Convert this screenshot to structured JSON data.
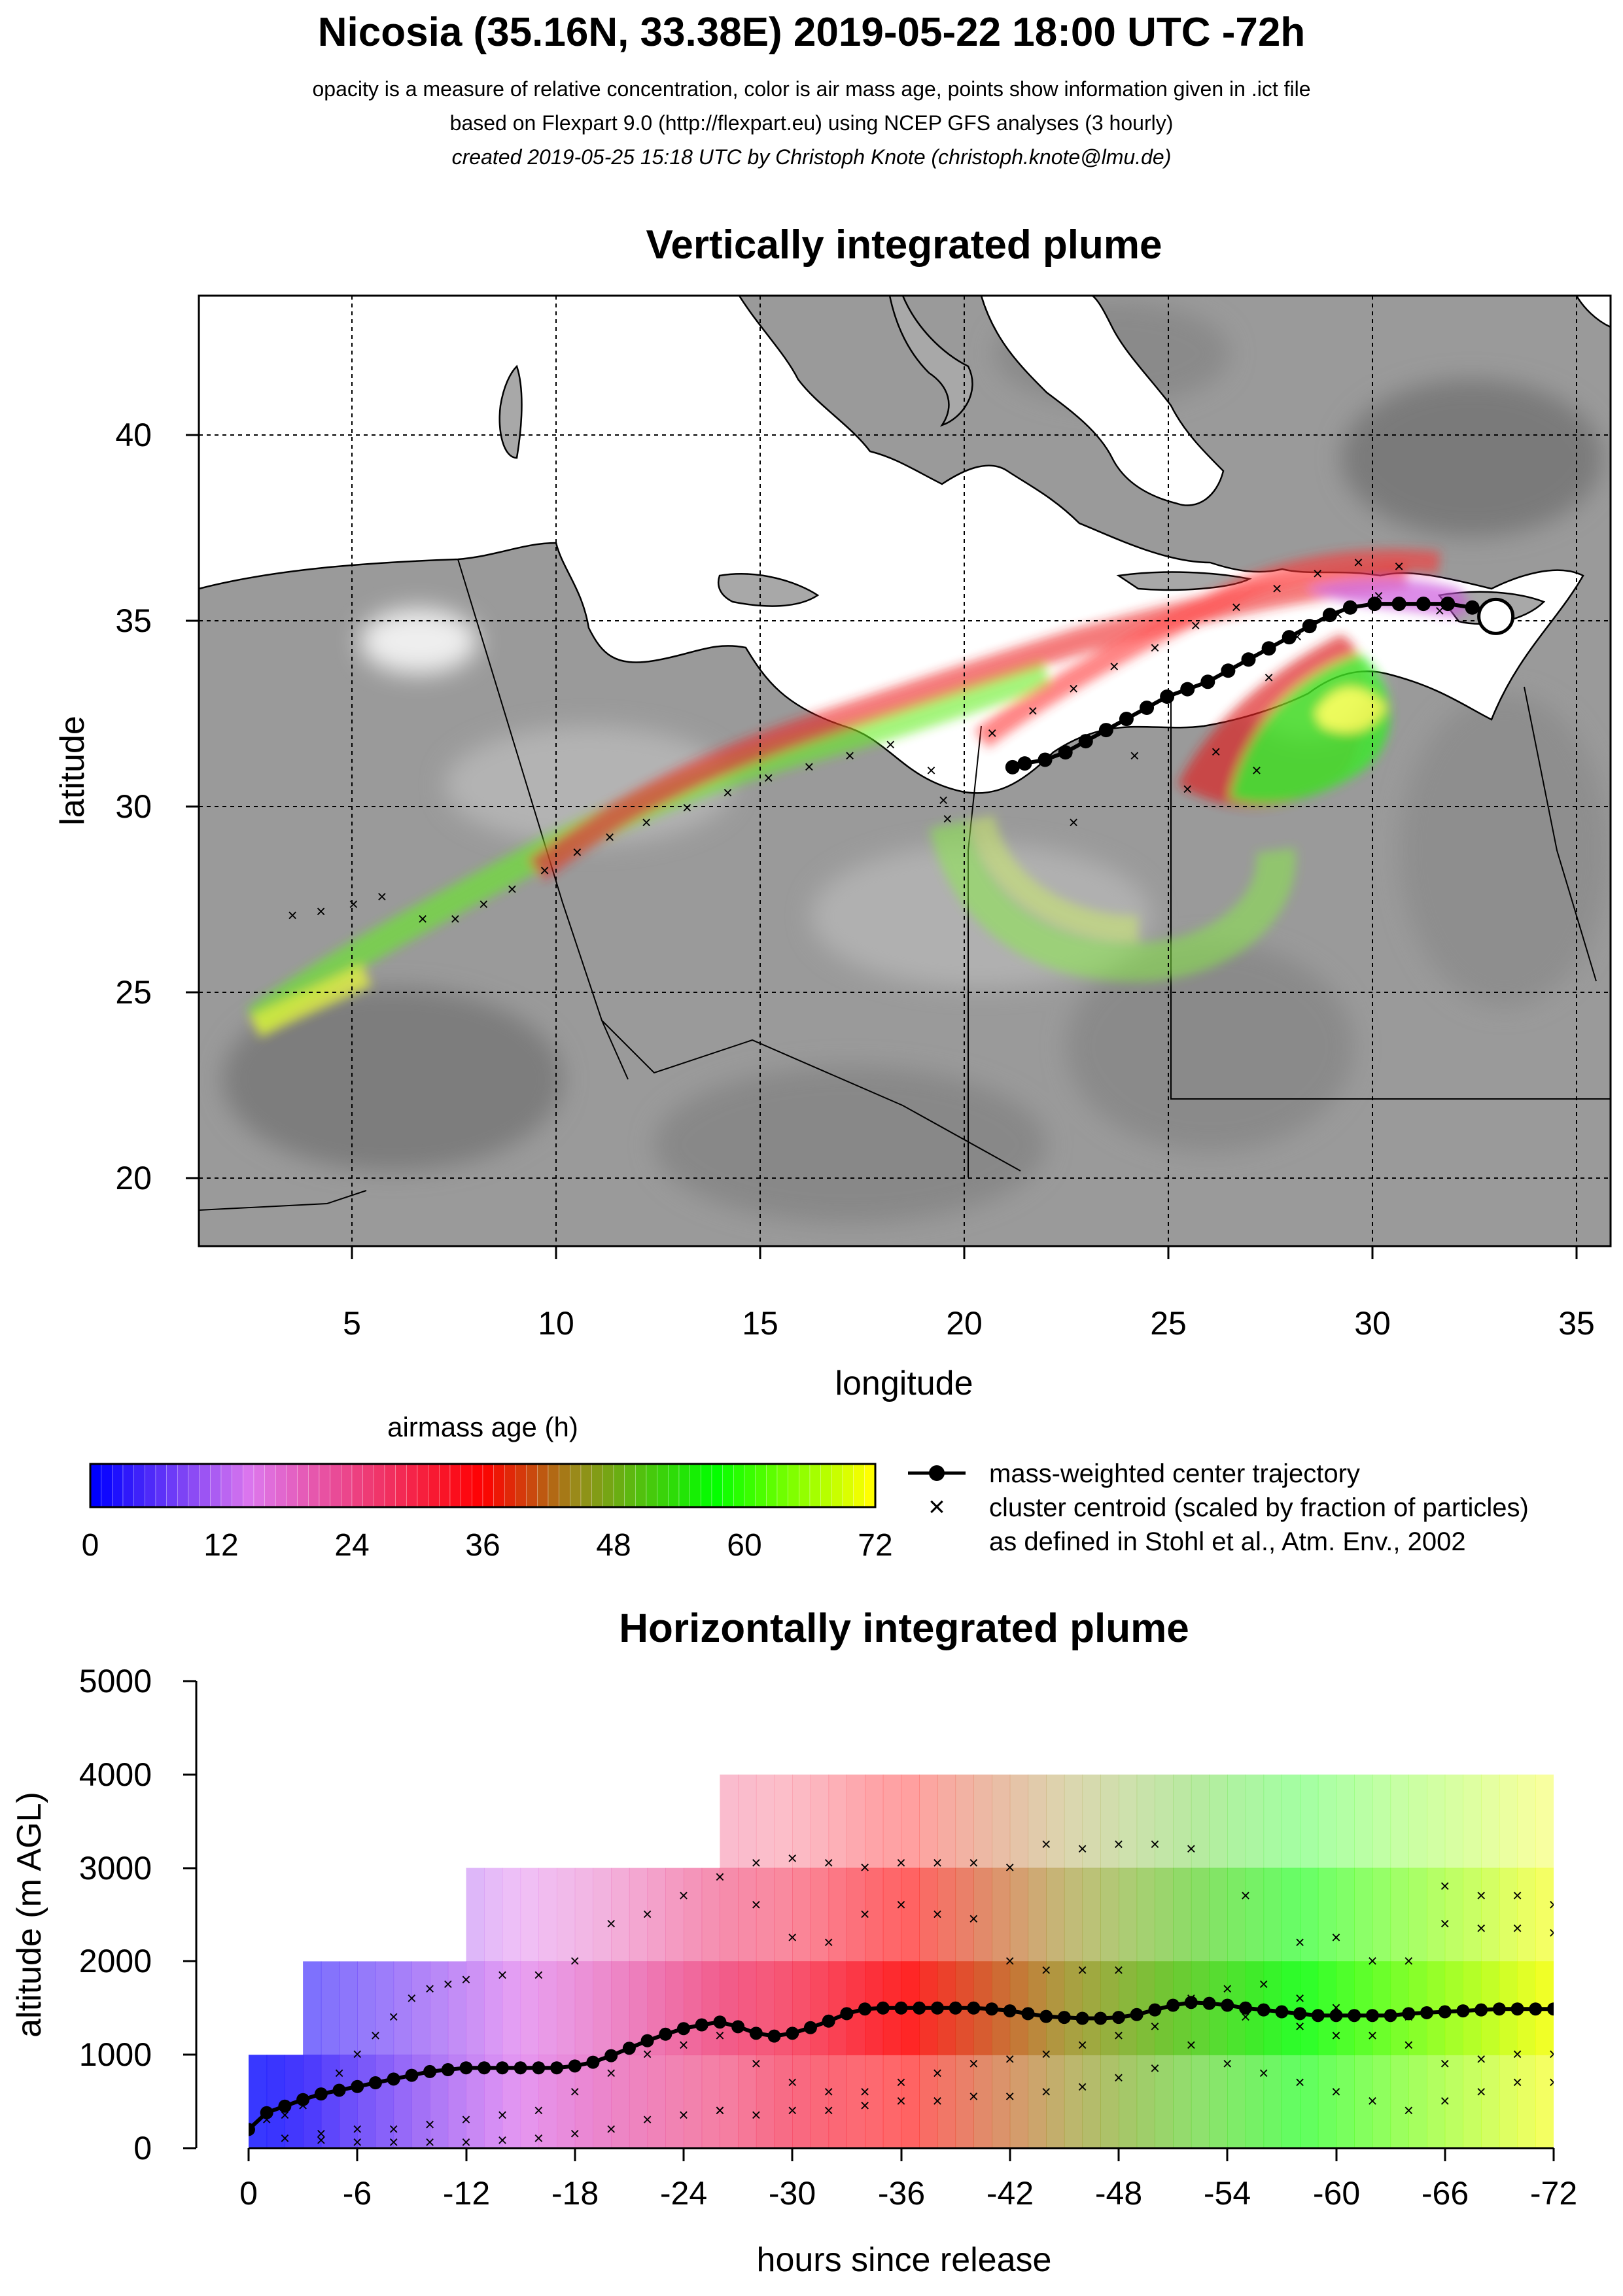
{
  "header": {
    "title": "Nicosia (35.16N, 33.38E) 2019-05-22 18:00 UTC -72h",
    "line1": "opacity is a measure of relative concentration, color is air mass age, points show information given in .ict file",
    "line2": "based on Flexpart 9.0 (http://flexpart.eu) using NCEP GFS analyses (3 hourly)",
    "line3": "created 2019-05-25 15:18 UTC by Christoph Knote (christoph.knote@lmu.de)"
  },
  "colors": {
    "age_stops": [
      "#0000ff",
      "#dd77ee",
      "#ff0000",
      "#9a8a1a",
      "#00ff00",
      "#ffff00"
    ],
    "land_gray": "#9a9a9a",
    "sea": "#ffffff"
  },
  "chart_data": [
    {
      "type": "scatter",
      "title": "Vertically integrated plume",
      "xlabel": "longitude",
      "ylabel": "latitude",
      "xlim": [
        1.5,
        36.2
      ],
      "ylim": [
        18.2,
        43.8
      ],
      "xticks": [
        5,
        10,
        15,
        20,
        25,
        30,
        35
      ],
      "yticks": [
        20,
        25,
        30,
        35,
        40
      ],
      "grid": true,
      "release_point": {
        "lon": 33.38,
        "lat": 35.16
      },
      "center_trajectory": [
        [
          33.4,
          35.3
        ],
        [
          32.8,
          35.4
        ],
        [
          32.2,
          35.5
        ],
        [
          31.6,
          35.5
        ],
        [
          31.0,
          35.5
        ],
        [
          30.4,
          35.5
        ],
        [
          29.8,
          35.4
        ],
        [
          29.3,
          35.2
        ],
        [
          28.8,
          34.9
        ],
        [
          28.3,
          34.6
        ],
        [
          27.8,
          34.3
        ],
        [
          27.3,
          34.0
        ],
        [
          26.8,
          33.7
        ],
        [
          26.3,
          33.4
        ],
        [
          25.8,
          33.2
        ],
        [
          25.3,
          33.0
        ],
        [
          24.8,
          32.7
        ],
        [
          24.3,
          32.4
        ],
        [
          23.8,
          32.1
        ],
        [
          23.3,
          31.8
        ],
        [
          22.8,
          31.5
        ],
        [
          22.3,
          31.3
        ],
        [
          21.8,
          31.2
        ],
        [
          21.5,
          31.1
        ]
      ],
      "cluster_centroids": [
        [
          3.8,
          27.1
        ],
        [
          4.5,
          27.2
        ],
        [
          5.3,
          27.4
        ],
        [
          6.0,
          27.6
        ],
        [
          7.0,
          27.0
        ],
        [
          7.8,
          27.0
        ],
        [
          8.5,
          27.4
        ],
        [
          9.2,
          27.8
        ],
        [
          10.0,
          28.3
        ],
        [
          10.8,
          28.8
        ],
        [
          11.6,
          29.2
        ],
        [
          12.5,
          29.6
        ],
        [
          13.5,
          30.0
        ],
        [
          14.5,
          30.4
        ],
        [
          15.5,
          30.8
        ],
        [
          16.5,
          31.1
        ],
        [
          17.5,
          31.4
        ],
        [
          18.5,
          31.7
        ],
        [
          19.5,
          31.0
        ],
        [
          19.8,
          30.2
        ],
        [
          19.9,
          29.7
        ],
        [
          23.0,
          29.6
        ],
        [
          21.0,
          32.0
        ],
        [
          22.0,
          32.6
        ],
        [
          23.0,
          33.2
        ],
        [
          24.0,
          33.8
        ],
        [
          25.0,
          34.3
        ],
        [
          26.0,
          34.9
        ],
        [
          27.0,
          35.4
        ],
        [
          28.0,
          35.9
        ],
        [
          29.0,
          36.3
        ],
        [
          30.0,
          36.6
        ],
        [
          31.0,
          36.5
        ],
        [
          24.5,
          31.4
        ],
        [
          25.8,
          30.5
        ],
        [
          26.5,
          31.5
        ],
        [
          27.5,
          31.0
        ],
        [
          27.8,
          33.5
        ],
        [
          28.5,
          34.6
        ],
        [
          29.5,
          35.2
        ],
        [
          30.5,
          35.7
        ],
        [
          32.0,
          35.3
        ]
      ],
      "legend": {
        "colorbar_title": "airmass age (h)",
        "colorbar_ticks": [
          "0",
          "12",
          "24",
          "36",
          "48",
          "60",
          "72"
        ],
        "center_label": "mass-weighted center trajectory",
        "cluster_label_1": "cluster centroid (scaled by fraction of particles)",
        "cluster_label_2": "as defined in Stohl et al., Atm. Env., 2002"
      }
    },
    {
      "type": "heatmap",
      "title": "Horizontally integrated plume",
      "xlabel": "hours since release",
      "ylabel": "altitude (m AGL)",
      "xlim": [
        0,
        -72
      ],
      "ylim": [
        0,
        5000
      ],
      "xticks": [
        "0",
        "-6",
        "-12",
        "-18",
        "-24",
        "-30",
        "-36",
        "-42",
        "-48",
        "-54",
        "-60",
        "-66",
        "-72"
      ],
      "yticks": [
        "0",
        "1000",
        "2000",
        "3000",
        "4000",
        "5000"
      ],
      "plume_top_m": [
        [
          0,
          1000
        ],
        [
          3,
          1000
        ],
        [
          3,
          1500
        ],
        [
          7,
          1500
        ],
        [
          7,
          2000
        ],
        [
          12,
          2000
        ],
        [
          12,
          3000
        ],
        [
          26,
          3000
        ],
        [
          26,
          4000
        ],
        [
          72,
          4000
        ]
      ],
      "center_altitude_m": [
        [
          0,
          200
        ],
        [
          1,
          380
        ],
        [
          2,
          450
        ],
        [
          3,
          520
        ],
        [
          4,
          580
        ],
        [
          5,
          620
        ],
        [
          6,
          660
        ],
        [
          7,
          700
        ],
        [
          8,
          740
        ],
        [
          9,
          780
        ],
        [
          10,
          820
        ],
        [
          11,
          840
        ],
        [
          12,
          860
        ],
        [
          13,
          860
        ],
        [
          14,
          860
        ],
        [
          15,
          860
        ],
        [
          16,
          860
        ],
        [
          17,
          860
        ],
        [
          18,
          880
        ],
        [
          19,
          920
        ],
        [
          20,
          990
        ],
        [
          21,
          1070
        ],
        [
          22,
          1150
        ],
        [
          23,
          1220
        ],
        [
          24,
          1280
        ],
        [
          25,
          1320
        ],
        [
          26,
          1350
        ],
        [
          27,
          1300
        ],
        [
          28,
          1230
        ],
        [
          29,
          1200
        ],
        [
          30,
          1230
        ],
        [
          31,
          1290
        ],
        [
          32,
          1360
        ],
        [
          33,
          1440
        ],
        [
          34,
          1490
        ],
        [
          35,
          1500
        ],
        [
          36,
          1500
        ],
        [
          37,
          1500
        ],
        [
          38,
          1500
        ],
        [
          39,
          1500
        ],
        [
          40,
          1500
        ],
        [
          41,
          1490
        ],
        [
          42,
          1470
        ],
        [
          43,
          1440
        ],
        [
          44,
          1410
        ],
        [
          45,
          1400
        ],
        [
          46,
          1390
        ],
        [
          47,
          1390
        ],
        [
          48,
          1400
        ],
        [
          49,
          1430
        ],
        [
          50,
          1480
        ],
        [
          51,
          1530
        ],
        [
          52,
          1560
        ],
        [
          53,
          1550
        ],
        [
          54,
          1530
        ],
        [
          55,
          1500
        ],
        [
          56,
          1480
        ],
        [
          57,
          1460
        ],
        [
          58,
          1440
        ],
        [
          59,
          1420
        ],
        [
          60,
          1420
        ],
        [
          61,
          1420
        ],
        [
          62,
          1420
        ],
        [
          63,
          1420
        ],
        [
          64,
          1440
        ],
        [
          65,
          1450
        ],
        [
          66,
          1460
        ],
        [
          67,
          1470
        ],
        [
          68,
          1480
        ],
        [
          69,
          1490
        ],
        [
          70,
          1490
        ],
        [
          71,
          1490
        ],
        [
          72,
          1490
        ]
      ],
      "cluster_altitude_m": [
        [
          1,
          300
        ],
        [
          2,
          350
        ],
        [
          3,
          450
        ],
        [
          4,
          600
        ],
        [
          5,
          800
        ],
        [
          6,
          1000
        ],
        [
          7,
          1200
        ],
        [
          8,
          1400
        ],
        [
          9,
          1600
        ],
        [
          10,
          1700
        ],
        [
          11,
          1750
        ],
        [
          12,
          1800
        ],
        [
          14,
          1850
        ],
        [
          16,
          1850
        ],
        [
          18,
          2000
        ],
        [
          20,
          2400
        ],
        [
          22,
          2500
        ],
        [
          24,
          2700
        ],
        [
          26,
          2900
        ],
        [
          28,
          3050
        ],
        [
          30,
          3100
        ],
        [
          32,
          3050
        ],
        [
          34,
          3000
        ],
        [
          36,
          3050
        ],
        [
          38,
          3050
        ],
        [
          40,
          3050
        ],
        [
          42,
          3000
        ],
        [
          44,
          3250
        ],
        [
          46,
          3200
        ],
        [
          48,
          3250
        ],
        [
          50,
          3250
        ],
        [
          52,
          3200
        ],
        [
          55,
          2700
        ],
        [
          58,
          2200
        ],
        [
          60,
          2250
        ],
        [
          62,
          2000
        ],
        [
          64,
          2000
        ],
        [
          66,
          2800
        ],
        [
          68,
          2700
        ],
        [
          70,
          2700
        ],
        [
          72,
          2600
        ],
        [
          28,
          2600
        ],
        [
          30,
          2250
        ],
        [
          32,
          2200
        ],
        [
          34,
          2500
        ],
        [
          36,
          2600
        ],
        [
          38,
          2500
        ],
        [
          40,
          2450
        ],
        [
          42,
          2000
        ],
        [
          44,
          1900
        ],
        [
          46,
          1900
        ],
        [
          48,
          1900
        ],
        [
          55,
          1400
        ],
        [
          58,
          1300
        ],
        [
          60,
          1200
        ],
        [
          62,
          1200
        ],
        [
          64,
          1100
        ],
        [
          66,
          2400
        ],
        [
          68,
          2350
        ],
        [
          70,
          2350
        ],
        [
          72,
          2300
        ],
        [
          4,
          150
        ],
        [
          6,
          200
        ],
        [
          8,
          200
        ],
        [
          10,
          250
        ],
        [
          12,
          300
        ],
        [
          14,
          350
        ],
        [
          16,
          400
        ],
        [
          18,
          600
        ],
        [
          20,
          800
        ],
        [
          22,
          1000
        ],
        [
          24,
          1100
        ],
        [
          26,
          1200
        ],
        [
          28,
          900
        ],
        [
          30,
          700
        ],
        [
          32,
          600
        ],
        [
          34,
          600
        ],
        [
          36,
          700
        ],
        [
          38,
          800
        ],
        [
          40,
          900
        ],
        [
          42,
          950
        ],
        [
          44,
          1000
        ],
        [
          46,
          1100
        ],
        [
          48,
          1200
        ],
        [
          50,
          1300
        ],
        [
          52,
          1100
        ],
        [
          54,
          900
        ],
        [
          56,
          800
        ],
        [
          58,
          700
        ],
        [
          60,
          600
        ],
        [
          62,
          500
        ],
        [
          64,
          400
        ],
        [
          66,
          500
        ],
        [
          68,
          600
        ],
        [
          70,
          700
        ],
        [
          72,
          700
        ],
        [
          26,
          400
        ],
        [
          28,
          350
        ],
        [
          30,
          400
        ],
        [
          32,
          400
        ],
        [
          34,
          450
        ],
        [
          36,
          500
        ],
        [
          38,
          500
        ],
        [
          40,
          550
        ],
        [
          42,
          550
        ],
        [
          44,
          600
        ],
        [
          46,
          650
        ],
        [
          48,
          750
        ],
        [
          50,
          850
        ],
        [
          52,
          1600
        ],
        [
          54,
          1700
        ],
        [
          56,
          1750
        ],
        [
          58,
          1600
        ],
        [
          60,
          1500
        ],
        [
          62,
          1400
        ],
        [
          64,
          1400
        ],
        [
          66,
          900
        ],
        [
          68,
          950
        ],
        [
          70,
          1000
        ],
        [
          72,
          1000
        ],
        [
          2,
          100
        ],
        [
          4,
          80
        ],
        [
          6,
          60
        ],
        [
          8,
          60
        ],
        [
          10,
          60
        ],
        [
          12,
          60
        ],
        [
          14,
          80
        ],
        [
          16,
          100
        ],
        [
          18,
          150
        ],
        [
          20,
          200
        ],
        [
          22,
          300
        ],
        [
          24,
          350
        ],
        [
          26,
          400
        ]
      ]
    }
  ]
}
